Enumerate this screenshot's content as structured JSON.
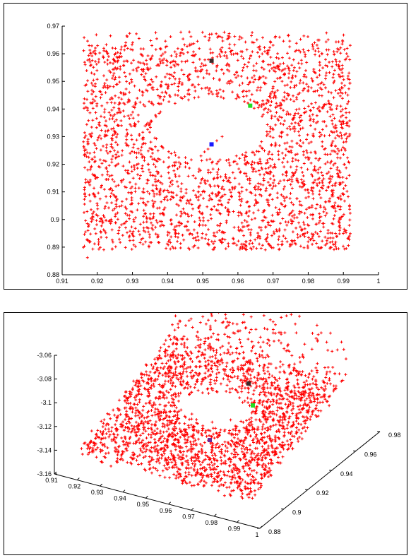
{
  "colors": {
    "points": "#ff0000",
    "marker_black": "#3a2a2a",
    "marker_green": "#22dd22",
    "marker_blue": "#1a1aff",
    "marker_purple": "#6a2a9a"
  },
  "chart_data": [
    {
      "type": "scatter",
      "title": "",
      "xlabel": "",
      "ylabel": "",
      "xlim": [
        0.91,
        1.0
      ],
      "ylim": [
        0.88,
        0.97
      ],
      "xticks": [
        "0.91",
        "0.92",
        "0.93",
        "0.94",
        "0.95",
        "0.96",
        "0.97",
        "0.98",
        "0.99",
        "1"
      ],
      "yticks": [
        "0.88",
        "0.89",
        "0.9",
        "0.91",
        "0.92",
        "0.93",
        "0.94",
        "0.95",
        "0.96",
        "0.97"
      ],
      "marker": "plus",
      "point_cloud": {
        "x_range": [
          0.916,
          0.992
        ],
        "y_range": [
          0.889,
          0.968
        ],
        "hole_center": [
          0.952,
          0.933
        ],
        "hole_radius": [
          0.016,
          0.011
        ],
        "count": 3000
      },
      "special_points": [
        {
          "x": 0.9525,
          "y": 0.9272,
          "color": "blue"
        },
        {
          "x": 0.9635,
          "y": 0.9412,
          "color": "green"
        },
        {
          "x": 0.9525,
          "y": 0.9575,
          "color": "black"
        }
      ]
    },
    {
      "type": "scatter",
      "projection": "3d",
      "title": "",
      "xlabel": "",
      "ylabel": "",
      "zlabel": "",
      "xlim": [
        0.91,
        1.0
      ],
      "ylim": [
        0.88,
        0.98
      ],
      "zlim": [
        -3.16,
        -3.06
      ],
      "xticks": [
        "0.91",
        "0.92",
        "0.93",
        "0.94",
        "0.95",
        "0.96",
        "0.97",
        "0.98",
        "0.99",
        "1"
      ],
      "yticks": [
        "0.88",
        "0.9",
        "0.92",
        "0.94",
        "0.96",
        "0.98"
      ],
      "zticks": [
        "-3.06",
        "-3.08",
        "-3.1",
        "-3.12",
        "-3.14",
        "-3.16"
      ],
      "marker": "plus",
      "special_points": [
        {
          "color": "purple"
        },
        {
          "color": "green"
        },
        {
          "color": "black"
        }
      ]
    }
  ]
}
